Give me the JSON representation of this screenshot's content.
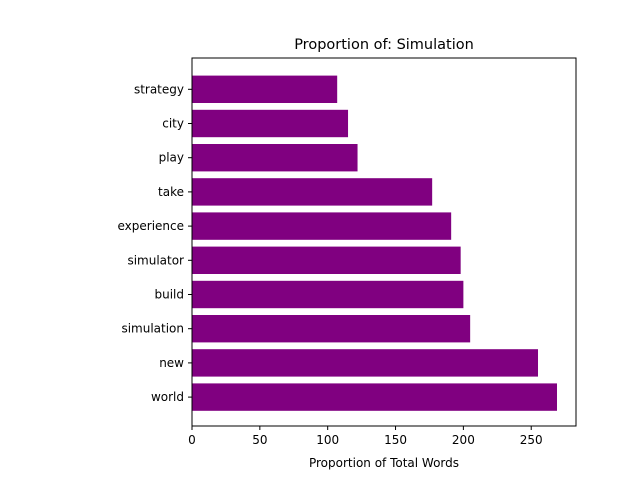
{
  "chart_data": {
    "type": "bar",
    "orientation": "horizontal",
    "title": "Proportion of: Simulation",
    "xlabel": "Proportion of Total Words",
    "ylabel": "",
    "categories": [
      "world",
      "new",
      "simulation",
      "build",
      "simulator",
      "experience",
      "take",
      "play",
      "city",
      "strategy"
    ],
    "values": [
      269,
      255,
      205,
      200,
      198,
      191,
      177,
      122,
      115,
      107
    ],
    "xlim": [
      0,
      283
    ],
    "xticks": [
      0,
      50,
      100,
      150,
      200,
      250
    ],
    "grid": false,
    "bar_color": "#800080"
  }
}
